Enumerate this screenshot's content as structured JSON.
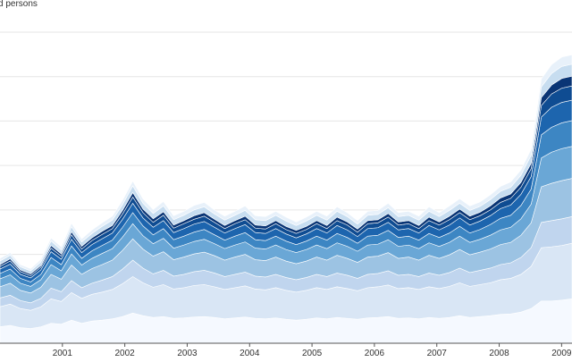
{
  "chart_data": {
    "type": "area",
    "stacked": true,
    "ylabel": "d persons",
    "ylim": [
      0,
      700
    ],
    "grid": true,
    "x_start": "2000-01",
    "x_end": "2009-03",
    "x_ticks": [
      "2001",
      "2002",
      "2003",
      "2004",
      "2005",
      "2006",
      "2007",
      "2008",
      "2009"
    ],
    "colors": [
      "#f5f9ff",
      "#d9e6f5",
      "#c0d5ee",
      "#9cc3e3",
      "#6aa7d6",
      "#3d86c3",
      "#1d65ae",
      "#0f4c92",
      "#0a3575",
      "#c7ddf0",
      "#e8f1fa"
    ],
    "series": [
      {
        "values": [
          37,
          40,
          35,
          33,
          37,
          45,
          43,
          52,
          45,
          50,
          52,
          55,
          60,
          68,
          62,
          58,
          60,
          56,
          57,
          59,
          60,
          58,
          55,
          57,
          59,
          56,
          55,
          57,
          54,
          52,
          54,
          57,
          55,
          58,
          56,
          54,
          57,
          58,
          60,
          56,
          57,
          55,
          58,
          56,
          58,
          62,
          58,
          60,
          62,
          65,
          66,
          70,
          78,
          95,
          95,
          97,
          100
        ]
      },
      {
        "values": [
          45,
          48,
          43,
          41,
          45,
          55,
          51,
          62,
          56,
          60,
          63,
          66,
          74,
          82,
          74,
          68,
          72,
          66,
          68,
          71,
          72,
          69,
          66,
          68,
          70,
          66,
          65,
          68,
          65,
          63,
          65,
          68,
          66,
          69,
          67,
          64,
          68,
          69,
          71,
          67,
          68,
          66,
          69,
          67,
          70,
          74,
          70,
          72,
          74,
          78,
          80,
          85,
          95,
          120,
          122,
          123,
          125
        ]
      },
      {
        "values": [
          20,
          20,
          18,
          17,
          19,
          24,
          22,
          27,
          24,
          25,
          27,
          29,
          33,
          37,
          33,
          30,
          32,
          29,
          30,
          31,
          32,
          31,
          29,
          30,
          31,
          29,
          29,
          30,
          29,
          28,
          29,
          30,
          29,
          31,
          30,
          28,
          30,
          30,
          32,
          30,
          30,
          29,
          31,
          30,
          31,
          33,
          31,
          32,
          33,
          34,
          35,
          38,
          42,
          57,
          59,
          60,
          60
        ]
      },
      {
        "values": [
          25,
          27,
          23,
          22,
          25,
          31,
          28,
          35,
          30,
          33,
          35,
          37,
          42,
          48,
          43,
          40,
          42,
          37,
          39,
          40,
          41,
          39,
          37,
          39,
          40,
          37,
          37,
          39,
          37,
          36,
          37,
          39,
          37,
          40,
          38,
          36,
          39,
          39,
          41,
          38,
          39,
          37,
          40,
          38,
          40,
          42,
          40,
          41,
          43,
          45,
          46,
          50,
          56,
          80,
          84,
          86,
          86
        ]
      },
      {
        "values": [
          18,
          19,
          16,
          15,
          17,
          22,
          19,
          25,
          21,
          23,
          25,
          26,
          30,
          34,
          30,
          28,
          30,
          26,
          27,
          28,
          29,
          27,
          26,
          27,
          28,
          26,
          26,
          27,
          26,
          25,
          26,
          27,
          26,
          28,
          27,
          25,
          27,
          27,
          29,
          27,
          27,
          26,
          28,
          27,
          28,
          30,
          28,
          29,
          31,
          33,
          34,
          37,
          42,
          65,
          70,
          72,
          72
        ]
      },
      {
        "values": [
          12,
          13,
          11,
          10,
          12,
          16,
          14,
          18,
          15,
          17,
          18,
          19,
          22,
          25,
          22,
          20,
          22,
          19,
          20,
          21,
          22,
          20,
          19,
          20,
          21,
          19,
          19,
          20,
          19,
          18,
          19,
          20,
          19,
          21,
          20,
          18,
          20,
          20,
          21,
          20,
          20,
          19,
          21,
          20,
          21,
          22,
          21,
          22,
          24,
          26,
          27,
          30,
          34,
          52,
          56,
          58,
          58
        ]
      },
      {
        "values": [
          10,
          11,
          9,
          9,
          10,
          13,
          12,
          15,
          13,
          14,
          15,
          16,
          18,
          21,
          18,
          17,
          18,
          16,
          17,
          18,
          18,
          17,
          16,
          17,
          18,
          16,
          16,
          17,
          16,
          15,
          16,
          17,
          16,
          18,
          17,
          15,
          17,
          17,
          18,
          17,
          17,
          16,
          18,
          17,
          18,
          19,
          18,
          19,
          20,
          22,
          23,
          25,
          28,
          40,
          45,
          46,
          46
        ]
      },
      {
        "values": [
          6,
          7,
          6,
          5,
          6,
          8,
          7,
          10,
          8,
          9,
          10,
          10,
          12,
          14,
          12,
          11,
          12,
          10,
          11,
          11,
          12,
          11,
          10,
          11,
          11,
          10,
          10,
          11,
          10,
          10,
          10,
          11,
          10,
          11,
          11,
          10,
          11,
          11,
          12,
          11,
          11,
          10,
          11,
          11,
          12,
          12,
          12,
          12,
          13,
          14,
          15,
          16,
          18,
          26,
          30,
          32,
          32
        ]
      },
      {
        "values": [
          4,
          5,
          4,
          4,
          4,
          6,
          5,
          7,
          6,
          6,
          7,
          7,
          8,
          10,
          8,
          8,
          8,
          7,
          7,
          8,
          8,
          7,
          7,
          7,
          8,
          7,
          7,
          7,
          7,
          7,
          7,
          7,
          7,
          8,
          7,
          7,
          7,
          7,
          8,
          7,
          7,
          7,
          8,
          7,
          8,
          8,
          8,
          8,
          9,
          10,
          10,
          11,
          12,
          18,
          20,
          22,
          22
        ]
      },
      {
        "values": [
          8,
          8,
          7,
          7,
          8,
          10,
          9,
          11,
          10,
          10,
          11,
          12,
          13,
          15,
          13,
          12,
          13,
          12,
          12,
          13,
          13,
          12,
          12,
          12,
          13,
          12,
          12,
          12,
          12,
          11,
          12,
          12,
          12,
          13,
          12,
          11,
          12,
          12,
          13,
          12,
          12,
          12,
          13,
          12,
          13,
          13,
          13,
          13,
          14,
          15,
          15,
          16,
          18,
          24,
          26,
          27,
          27
        ]
      },
      {
        "values": [
          6,
          6,
          5,
          5,
          6,
          7,
          7,
          8,
          7,
          8,
          8,
          9,
          10,
          11,
          10,
          9,
          10,
          9,
          9,
          10,
          10,
          9,
          9,
          9,
          10,
          9,
          9,
          9,
          9,
          8,
          9,
          9,
          9,
          10,
          9,
          8,
          9,
          9,
          10,
          9,
          9,
          9,
          10,
          9,
          10,
          10,
          10,
          10,
          11,
          11,
          12,
          12,
          14,
          18,
          20,
          21,
          21
        ]
      }
    ]
  }
}
